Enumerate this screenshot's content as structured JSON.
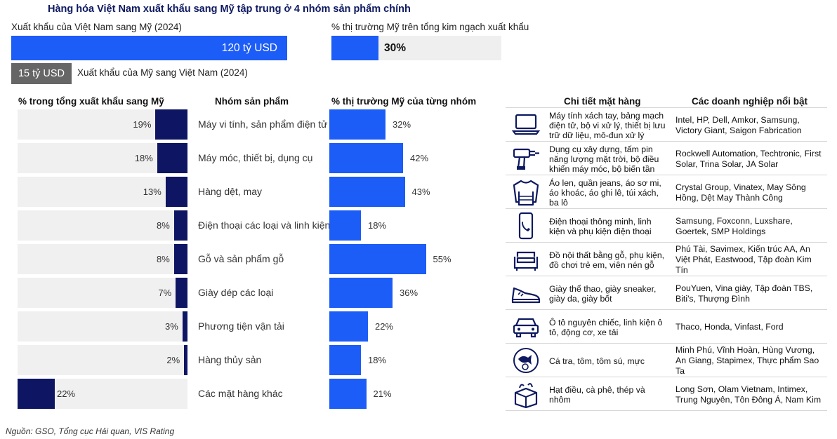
{
  "title": "Hàng hóa Việt Nam xuất khẩu sang Mỹ tập trung ở 4 nhóm sản phẩm chính",
  "summary": {
    "export_label": "Xuất khẩu của Việt Nam sang Mỹ (2024)",
    "export_value": "120 tỷ USD",
    "import_value": "15 tỷ USD",
    "import_label": "Xuất khẩu của Mỹ sang Việt Nam (2024)",
    "share_label": "% thị trường Mỹ trên tổng kim ngạch xuất khẩu",
    "share_value": "30%",
    "share_fraction": 0.3,
    "import_fraction": 0.125
  },
  "headers": {
    "col1": "% trong tổng xuất khẩu sang Mỹ",
    "col2": "Nhóm sản phẩm",
    "col3": "% thị trường Mỹ của từng nhóm",
    "col4": "Chi tiết mặt hàng",
    "col5": "Các doanh nghiệp nổi bật"
  },
  "rows": [
    {
      "share_label": "19%",
      "market_label": "32%",
      "category": "Máy vi tính, sản phẩm điện tử",
      "detail": "Máy tính xách tay, bảng mạch điện tử, bộ vi xử lý, thiết bị lưu trữ dữ liệu, mô-đun xử lý",
      "companies": "Intel, HP, Dell, Amkor, Samsung, Victory Giant, Saigon Fabrication",
      "icon": "laptop-icon"
    },
    {
      "share_label": "18%",
      "market_label": "42%",
      "category": "Máy móc, thiết bị, dụng cụ",
      "detail": "Dụng cụ xây dựng, tấm pin năng lượng mặt trời, bộ điều khiển máy móc, bộ biến tần",
      "companies": "Rockwell Automation, Techtronic, First Solar, Trina Solar, JA Solar",
      "icon": "drill-icon"
    },
    {
      "share_label": "13%",
      "market_label": "43%",
      "category": "Hàng dệt, may",
      "detail": "Áo len, quần jeans, áo sơ mi, áo khoác, áo ghi lê, túi xách, ba lô",
      "companies": "Crystal Group, Vinatex, May Sông Hồng, Dệt May Thành Công",
      "icon": "sweater-icon"
    },
    {
      "share_label": "8%",
      "market_label": "18%",
      "category": "Điện thoại các loại và linh kiện",
      "detail": "Điện thoại thông minh, linh kiện và phụ kiện điện thoại",
      "companies": "Samsung, Foxconn, Luxshare, Goertek, SMP Holdings",
      "icon": "phone-icon"
    },
    {
      "share_label": "8%",
      "market_label": "55%",
      "category": "Gỗ và sản phẩm gỗ",
      "detail": "Đồ nội thất bằng gỗ, phụ kiện, đồ chơi trẻ em, viên nén gỗ",
      "companies": "Phú Tài, Savimex, Kiến trúc AA, An Việt Phát, Eastwood, Tập đoàn Kim Tín",
      "icon": "sofa-icon"
    },
    {
      "share_label": "7%",
      "market_label": "36%",
      "category": "Giày dép các loại",
      "detail": "Giày thể thao, giày sneaker, giày da, giày bốt",
      "companies": "PouYuen, Vina giày, Tập đoàn TBS, Biti's, Thượng Đình",
      "icon": "shoe-icon"
    },
    {
      "share_label": "3%",
      "market_label": "22%",
      "category": "Phương tiện vận tải",
      "detail": "Ô tô nguyên chiếc, linh kiện ô tô, động cơ, xe tải",
      "companies": "Thaco, Honda, Vinfast, Ford",
      "icon": "car-icon"
    },
    {
      "share_label": "2%",
      "market_label": "18%",
      "category": "Hàng thủy sản",
      "detail": "Cá tra, tôm, tôm sú, mực",
      "companies": "Minh Phú, Vĩnh Hoàn, Hùng Vương, An Giang, Stapimex, Thực phẩm Sao Ta",
      "icon": "seafood-icon"
    },
    {
      "share_label": "22%",
      "market_label": "21%",
      "category": "Các mặt hàng khác",
      "detail": "Hạt điều, cà phê, thép và nhôm",
      "companies": "Long Sơn, Olam Vietnam, Intimex, Trung Nguyên, Tôn Đông Á, Nam Kim",
      "icon": "box-icon"
    }
  ],
  "chart_data": [
    {
      "type": "bar",
      "title": "% trong tổng xuất khẩu sang Mỹ",
      "categories": [
        "Máy vi tính, sản phẩm điện tử",
        "Máy móc, thiết bị, dụng cụ",
        "Hàng dệt, may",
        "Điện thoại các loại và linh kiện",
        "Gỗ và sản phẩm gỗ",
        "Giày dép các loại",
        "Phương tiện vận tải",
        "Hàng thủy sản",
        "Các mặt hàng khác"
      ],
      "values": [
        19,
        18,
        13,
        8,
        8,
        7,
        3,
        2,
        22
      ],
      "orientation": "horizontal, right-aligned",
      "xlim": [
        0,
        100
      ]
    },
    {
      "type": "bar",
      "title": "% thị trường Mỹ của từng nhóm",
      "categories": [
        "Máy vi tính, sản phẩm điện tử",
        "Máy móc, thiết bị, dụng cụ",
        "Hàng dệt, may",
        "Điện thoại các loại và linh kiện",
        "Gỗ và sản phẩm gỗ",
        "Giày dép các loại",
        "Phương tiện vận tải",
        "Hàng thủy sản",
        "Các mặt hàng khác"
      ],
      "values": [
        32,
        42,
        43,
        18,
        55,
        36,
        22,
        18,
        21
      ],
      "orientation": "horizontal",
      "xlim": [
        0,
        100
      ]
    }
  ],
  "source": "Nguồn: GSO, Tổng cục Hải quan, VIS Rating"
}
